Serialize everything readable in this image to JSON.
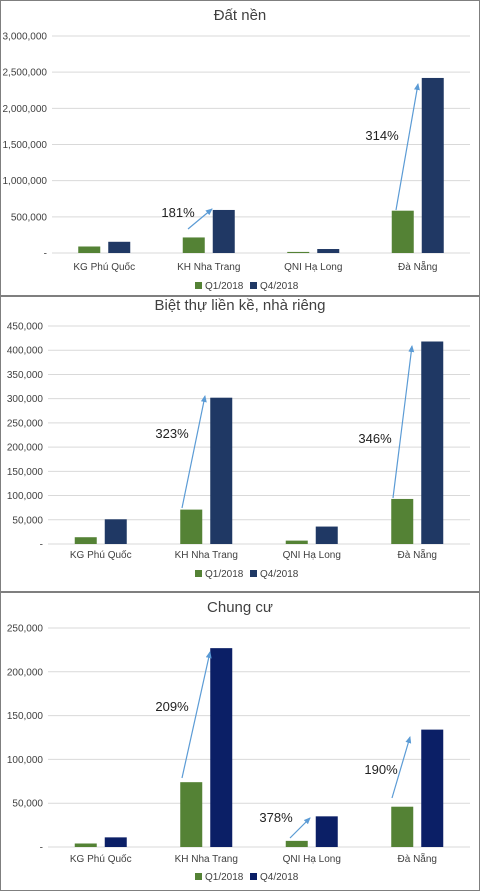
{
  "colors": {
    "q1": "#548235",
    "q4_panel1": "#203864",
    "q4_panel2": "#1F3864",
    "q4_panel3": "#0B1F66",
    "arrow": "#5B9BD5",
    "grid": "#D9D9D9",
    "border": "#7F7F7F",
    "text": "#404040"
  },
  "chart_data": [
    {
      "type": "bar",
      "title": "Đất nền",
      "categories": [
        "KG Phú Quốc",
        "KH Nha Trang",
        "QNI Hạ Long",
        "Đà Nẵng"
      ],
      "series": [
        {
          "name": "Q1/2018",
          "values": [
            90000,
            215000,
            15000,
            585000
          ]
        },
        {
          "name": "Q4/2018",
          "values": [
            155000,
            595000,
            55000,
            2420000
          ]
        }
      ],
      "ylim": [
        0,
        3000000
      ],
      "yticks": [
        "-",
        "500,000",
        "1,000,000",
        "1,500,000",
        "2,000,000",
        "2,500,000",
        "3,000,000"
      ],
      "annotations": [
        {
          "text": "181%",
          "category": "KH Nha Trang"
        },
        {
          "text": "314%",
          "category": "Đà Nẵng"
        }
      ],
      "legend": "bottom",
      "grid": true
    },
    {
      "type": "bar",
      "title": "Biệt thự liền kề, nhà riêng",
      "categories": [
        "KG Phú Quốc",
        "KH Nha Trang",
        "QNI Hạ Long",
        "Đà Nẵng"
      ],
      "series": [
        {
          "name": "Q1/2018",
          "values": [
            14000,
            71000,
            7000,
            93000
          ]
        },
        {
          "name": "Q4/2018",
          "values": [
            51000,
            302000,
            36000,
            418000
          ]
        }
      ],
      "ylim": [
        0,
        450000
      ],
      "yticks": [
        "-",
        "50,000",
        "100,000",
        "150,000",
        "200,000",
        "250,000",
        "300,000",
        "350,000",
        "400,000",
        "450,000"
      ],
      "annotations": [
        {
          "text": "323%",
          "category": "KH Nha Trang"
        },
        {
          "text": "346%",
          "category": "Đà Nẵng"
        }
      ],
      "legend": "bottom",
      "grid": true
    },
    {
      "type": "bar",
      "title": "Chung cư",
      "categories": [
        "KG Phú Quốc",
        "KH Nha Trang",
        "QNI Hạ Long",
        "Đà Nẵng"
      ],
      "series": [
        {
          "name": "Q1/2018",
          "values": [
            4000,
            74000,
            7000,
            46000
          ]
        },
        {
          "name": "Q4/2018",
          "values": [
            11000,
            227000,
            35000,
            134000
          ]
        }
      ],
      "ylim": [
        0,
        250000
      ],
      "yticks": [
        "-",
        "50,000",
        "100,000",
        "150,000",
        "200,000",
        "250,000"
      ],
      "annotations": [
        {
          "text": "209%",
          "category": "KH Nha Trang"
        },
        {
          "text": "378%",
          "category": "QNI Hạ Long"
        },
        {
          "text": "190%",
          "category": "Đà Nẵng"
        }
      ],
      "legend": "bottom",
      "grid": true
    }
  ]
}
